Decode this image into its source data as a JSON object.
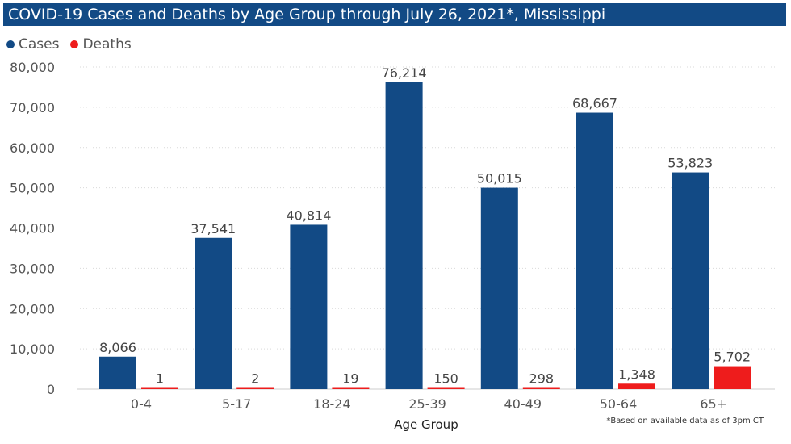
{
  "title": "COVID-19 Cases and Deaths by Age Group through July 26, 2021*, Mississippi",
  "footnote": "*Based on available data as of 3pm CT",
  "colors": {
    "cases": "#124a85",
    "deaths": "#ee1c1c",
    "title_bg": "#124a85"
  },
  "chart_data": {
    "type": "bar",
    "title": "COVID-19 Cases and Deaths by Age Group through July 26, 2021*, Mississippi",
    "xlabel": "Age Group",
    "ylabel": "",
    "ylim": [
      0,
      80000
    ],
    "yticks": [
      "0",
      "10,000",
      "20,000",
      "30,000",
      "40,000",
      "50,000",
      "60,000",
      "70,000",
      "80,000"
    ],
    "ytick_values": [
      0,
      10000,
      20000,
      30000,
      40000,
      50000,
      60000,
      70000,
      80000
    ],
    "categories": [
      "0-4",
      "5-17",
      "18-24",
      "25-39",
      "40-49",
      "50-64",
      "65+"
    ],
    "legend_position": "top-left",
    "grid": true,
    "series": [
      {
        "name": "Cases",
        "color": "#124a85",
        "values": [
          8066,
          37541,
          40814,
          76214,
          50015,
          68667,
          53823
        ],
        "labels": [
          "8,066",
          "37,541",
          "40,814",
          "76,214",
          "50,015",
          "68,667",
          "53,823"
        ]
      },
      {
        "name": "Deaths",
        "color": "#ee1c1c",
        "values": [
          1,
          2,
          19,
          150,
          298,
          1348,
          5702
        ],
        "labels": [
          "1",
          "2",
          "19",
          "150",
          "298",
          "1,348",
          "5,702"
        ]
      }
    ]
  }
}
